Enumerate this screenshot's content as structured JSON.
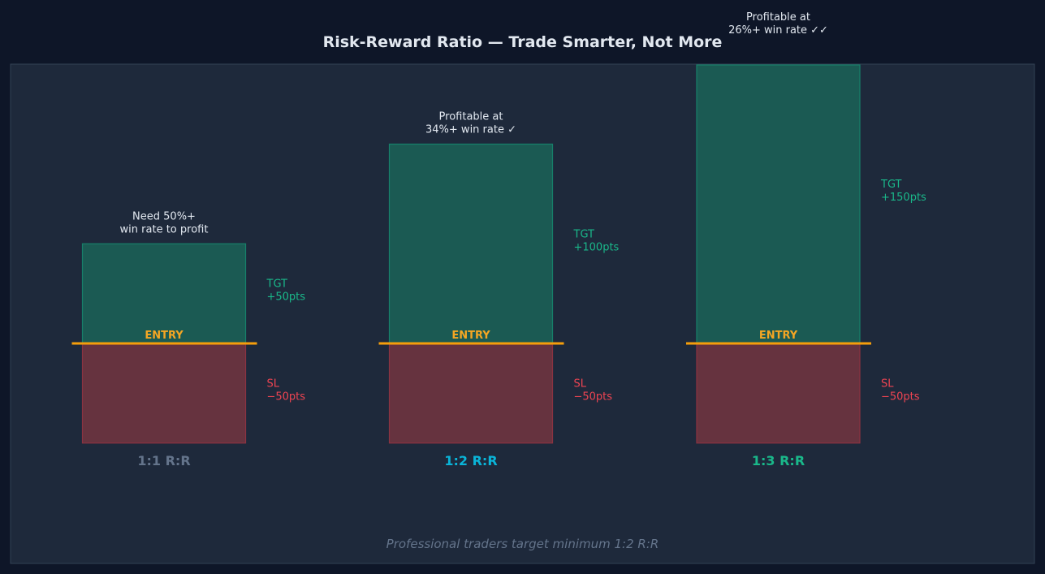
{
  "chart_data": {
    "type": "bar",
    "title": "Risk-Reward Ratio — Trade Smarter, Not More",
    "footnote": "Professional traders target minimum 1:2 R:R",
    "entry_label": "ENTRY",
    "unit": "pts",
    "ylim": [
      -50,
      150
    ],
    "colors": {
      "background": "#0e1628",
      "panel": "#1e293b",
      "panel_border": "#334155",
      "target_fill": "#1b5a53",
      "target_border": "#17806a",
      "stop_fill": "#66333f",
      "stop_border": "#8b3341",
      "entry_line": "#f59e0b",
      "entry_text": "#f5a623",
      "target_text": "#1ab88a",
      "stop_text": "#ef4452",
      "note_text": "#e2e8f0",
      "title_text": "#e2e8f0",
      "footnote_text": "#64748b"
    },
    "categories": [
      {
        "label": "1:1 R:R",
        "label_color": "#64748b",
        "target": 50,
        "stop": -50,
        "target_label": [
          "TGT",
          "+50pts"
        ],
        "stop_label": [
          "SL",
          "−50pts"
        ],
        "note": [
          "Need 50%+",
          "win rate to profit"
        ]
      },
      {
        "label": "1:2 R:R",
        "label_color": "#0ab4d8",
        "target": 100,
        "stop": -50,
        "target_label": [
          "TGT",
          "+100pts"
        ],
        "stop_label": [
          "SL",
          "−50pts"
        ],
        "note": [
          "Profitable at",
          "34%+ win rate ✓"
        ]
      },
      {
        "label": "1:3 R:R",
        "label_color": "#1ab88a",
        "target": 150,
        "stop": -50,
        "target_label": [
          "TGT",
          "+150pts"
        ],
        "stop_label": [
          "SL",
          "−50pts"
        ],
        "note": [
          "Profitable at",
          "26%+ win rate ✓✓"
        ]
      }
    ]
  }
}
